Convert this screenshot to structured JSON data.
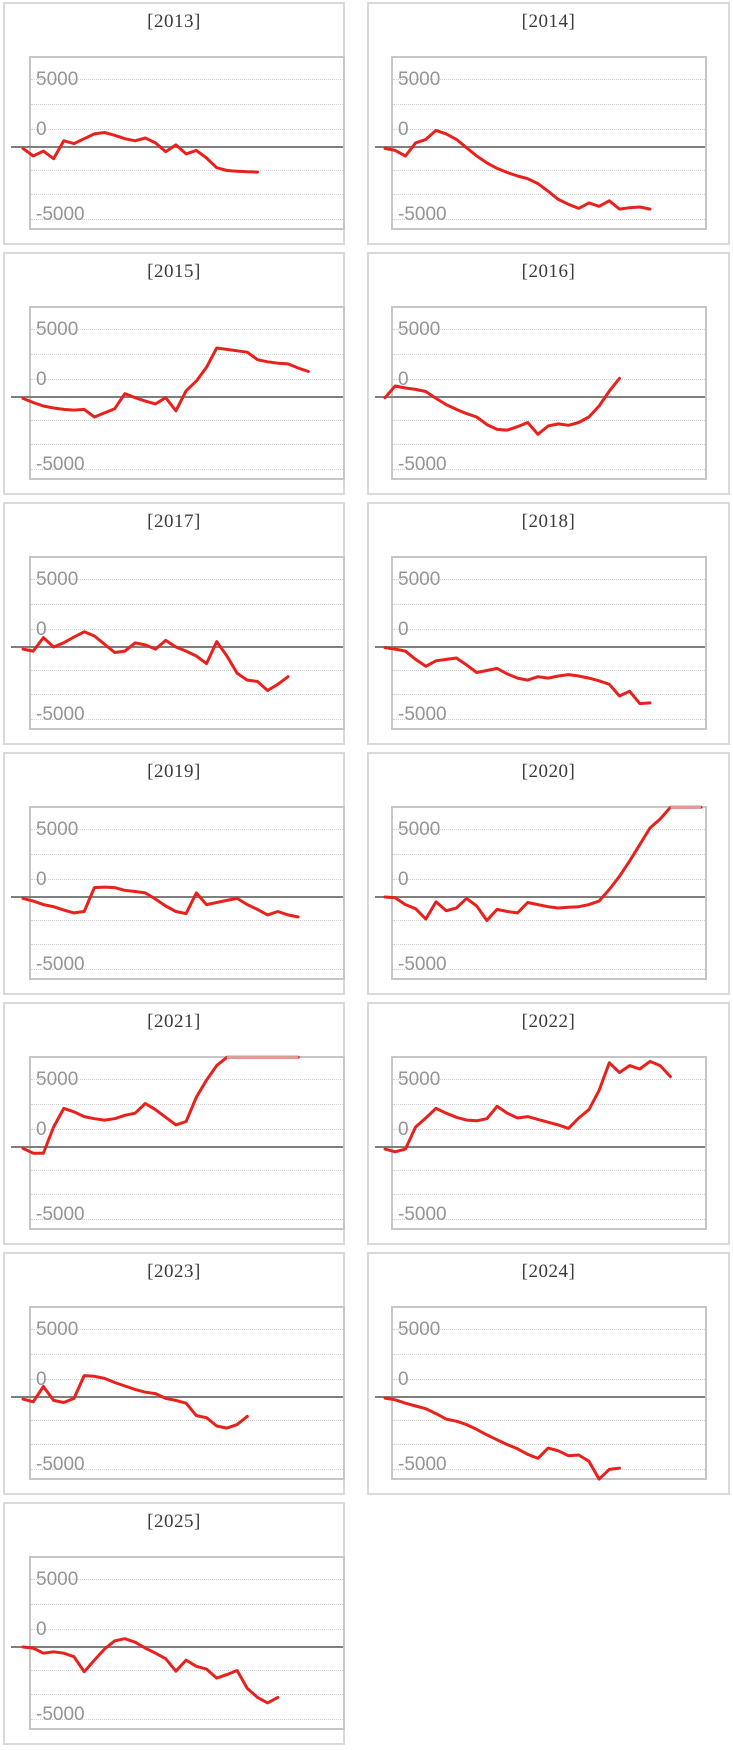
{
  "page": {
    "background": "#ffffff"
  },
  "colors": {
    "line_red": "#e8211c",
    "clipped_line_pink": "#dd9b95",
    "zero_line_gray": "#7f7f7f",
    "gridline_gray": "#d2d2d2",
    "plot_border_gray": "#c6c6c6",
    "card_border_gray": "#d9d9d9",
    "axis_label_gray": "#949494",
    "title_gray": "#3a3a3a"
  },
  "axis": {
    "tick_labels": [
      "5000",
      "0",
      "-5000"
    ],
    "tick_values": [
      5000,
      0,
      -5000
    ],
    "zero_baseline": 0,
    "grid": "dotted-horizontal",
    "legend": "none"
  },
  "chart_data": [
    {
      "type": "line",
      "title": "[2013]",
      "values": [
        -100,
        -650,
        -300,
        -850,
        450,
        250,
        600,
        950,
        1050,
        850,
        600,
        450,
        650,
        300,
        -350,
        150,
        -500,
        -250,
        -800,
        -1500,
        -1700,
        -1750,
        -1800,
        -1820
      ]
    },
    {
      "type": "line",
      "title": "[2014]",
      "values": [
        -100,
        -250,
        -650,
        300,
        550,
        1200,
        950,
        550,
        -50,
        -650,
        -1150,
        -1550,
        -1850,
        -2100,
        -2300,
        -2650,
        -3200,
        -3800,
        -4150,
        -4450,
        -4050,
        -4300,
        -3900,
        -4500,
        -4400,
        -4350,
        -4500
      ]
    },
    {
      "type": "line",
      "title": "[2015]",
      "values": [
        -100,
        -400,
        -650,
        -800,
        -900,
        -950,
        -900,
        -1450,
        -1150,
        -850,
        250,
        -50,
        -300,
        -500,
        -50,
        -1000,
        450,
        1150,
        2150,
        3550,
        3450,
        3350,
        3250,
        2700,
        2550,
        2450,
        2400,
        2100,
        1850
      ]
    },
    {
      "type": "line",
      "title": "[2016]",
      "values": [
        -50,
        800,
        650,
        550,
        400,
        -100,
        -550,
        -900,
        -1200,
        -1450,
        -2000,
        -2350,
        -2400,
        -2150,
        -1850,
        -2700,
        -2100,
        -1950,
        -2050,
        -1850,
        -1450,
        -650,
        430,
        1350
      ]
    },
    {
      "type": "line",
      "title": "[2017]",
      "values": [
        -150,
        -300,
        680,
        0,
        310,
        720,
        1100,
        800,
        200,
        -400,
        -300,
        300,
        150,
        -150,
        480,
        0,
        -300,
        -650,
        -1200,
        390,
        -650,
        -1900,
        -2400,
        -2500,
        -3150,
        -2700,
        -2150
      ]
    },
    {
      "type": "line",
      "title": "[2018]",
      "values": [
        -50,
        -150,
        -300,
        -900,
        -1400,
        -1000,
        -900,
        -800,
        -1300,
        -1850,
        -1700,
        -1550,
        -1950,
        -2250,
        -2400,
        -2150,
        -2250,
        -2100,
        -2000,
        -2100,
        -2250,
        -2450,
        -2700,
        -3550,
        -3200,
        -4100,
        -4050
      ]
    },
    {
      "type": "line",
      "title": "[2019]",
      "values": [
        -100,
        -300,
        -550,
        -700,
        -950,
        -1150,
        -1050,
        680,
        720,
        680,
        480,
        400,
        300,
        -150,
        -650,
        -1050,
        -1200,
        300,
        -550,
        -400,
        -250,
        -100,
        -550,
        -900,
        -1300,
        -1050,
        -1300,
        -1450
      ]
    },
    {
      "type": "line",
      "title": "[2020]",
      "values": [
        0,
        -50,
        -550,
        -850,
        -1600,
        -350,
        -1000,
        -800,
        -100,
        -650,
        -1700,
        -900,
        -1050,
        -1150,
        -400,
        -550,
        -700,
        -800,
        -750,
        -700,
        -550,
        -300,
        550,
        1500,
        2600,
        3800,
        5000,
        5650,
        6500,
        6500,
        6500,
        6500
      ]
    },
    {
      "type": "line",
      "title": "[2021]",
      "values": [
        -100,
        -450,
        -450,
        1450,
        2800,
        2550,
        2200,
        2050,
        1950,
        2050,
        2300,
        2450,
        3150,
        2700,
        2150,
        1600,
        1850,
        3600,
        4850,
        5900,
        6500,
        6500,
        6500,
        6500,
        6500,
        6500,
        6500,
        6500
      ]
    },
    {
      "type": "line",
      "title": "[2022]",
      "values": [
        -150,
        -350,
        -150,
        1450,
        2100,
        2800,
        2450,
        2150,
        1950,
        1900,
        2050,
        2950,
        2450,
        2100,
        2200,
        2000,
        1800,
        1600,
        1350,
        2100,
        2700,
        4100,
        6100,
        5400,
        5900,
        5650,
        6200,
        5900,
        5100
      ]
    },
    {
      "type": "line",
      "title": "[2023]",
      "values": [
        -150,
        -350,
        760,
        -250,
        -400,
        -100,
        1550,
        1500,
        1350,
        1050,
        800,
        550,
        350,
        250,
        -100,
        -250,
        -450,
        -1350,
        -1500,
        -2100,
        -2250,
        -2000,
        -1400
      ]
    },
    {
      "type": "line",
      "title": "[2024]",
      "values": [
        -80,
        -200,
        -450,
        -650,
        -850,
        -1200,
        -1600,
        -1750,
        -2000,
        -2350,
        -2750,
        -3100,
        -3450,
        -3750,
        -4150,
        -4450,
        -3700,
        -3900,
        -4250,
        -4200,
        -4650,
        -5950,
        -5250,
        -5150
      ]
    },
    {
      "type": "line",
      "title": "[2025]",
      "values": [
        0,
        -80,
        -450,
        -350,
        -450,
        -700,
        -1800,
        -950,
        -150,
        450,
        600,
        350,
        -80,
        -450,
        -850,
        -1750,
        -950,
        -1400,
        -1600,
        -2250,
        -2000,
        -1700,
        -3000,
        -3650,
        -4050,
        -3650
      ]
    }
  ]
}
